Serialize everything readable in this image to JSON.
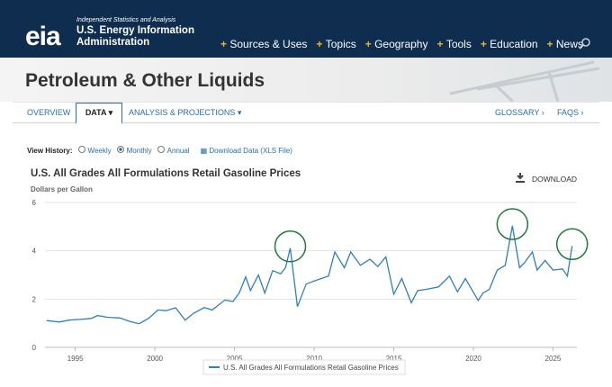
{
  "header": {
    "tagline": "Independent Statistics and Analysis",
    "agency": "U.S. Energy Information Administration",
    "logo": "eia",
    "nav": [
      "Sources & Uses",
      "Topics",
      "Geography",
      "Tools",
      "Education",
      "News"
    ]
  },
  "banner": {
    "title": "Petroleum & Other Liquids"
  },
  "tabs": {
    "left": [
      "OVERVIEW",
      "DATA",
      "ANALYSIS & PROJECTIONS"
    ],
    "right": [
      "GLOSSARY",
      "FAQS"
    ]
  },
  "view_history": {
    "label": "View History:",
    "options": [
      "Weekly",
      "Monthly",
      "Annual"
    ],
    "download": "Download Data (XLS File)"
  },
  "download_button": "DOWNLOAD",
  "chart_data": {
    "type": "line",
    "title": "U.S. All Grades All Formulations Retail Gasoline Prices",
    "y_label": "Dollars per Gallon",
    "x": [
      1993.2,
      1994.0,
      1994.6,
      1995.3,
      1996.0,
      1996.4,
      1997.0,
      1997.8,
      1998.5,
      1999.0,
      1999.6,
      2000.2,
      2000.7,
      2001.3,
      2001.9,
      2002.4,
      2003.1,
      2003.6,
      2004.4,
      2004.9,
      2005.3,
      2005.7,
      2006.0,
      2006.5,
      2006.9,
      2007.4,
      2007.9,
      2008.2,
      2008.5,
      2008.95,
      2009.5,
      2010.0,
      2010.9,
      2011.3,
      2011.9,
      2012.3,
      2012.9,
      2013.5,
      2014.0,
      2014.5,
      2015.0,
      2015.5,
      2016.1,
      2016.5,
      2017.0,
      2017.8,
      2018.5,
      2019.0,
      2019.5,
      2020.3,
      2020.6,
      2021.0,
      2021.5,
      2022.0,
      2022.45,
      2022.9,
      2023.2,
      2023.7,
      2024.0,
      2024.5,
      2025.0,
      2025.6,
      2025.9,
      2026.2
    ],
    "series": [
      {
        "name": "U.S. All Grades All Formulations Retail Gasoline Prices",
        "color": "#2f7ebd",
        "values": [
          1.11,
          1.05,
          1.13,
          1.16,
          1.2,
          1.32,
          1.25,
          1.22,
          1.06,
          0.98,
          1.2,
          1.55,
          1.52,
          1.64,
          1.13,
          1.4,
          1.65,
          1.55,
          1.96,
          1.9,
          2.26,
          2.92,
          2.35,
          3.0,
          2.25,
          3.18,
          3.05,
          3.3,
          4.11,
          1.69,
          2.62,
          2.75,
          2.95,
          3.95,
          3.3,
          3.95,
          3.4,
          3.65,
          3.35,
          3.75,
          2.2,
          2.85,
          1.85,
          2.35,
          2.4,
          2.5,
          2.95,
          2.3,
          2.85,
          1.94,
          2.25,
          2.4,
          3.2,
          3.4,
          5.03,
          3.3,
          3.5,
          3.95,
          3.2,
          3.6,
          3.2,
          3.25,
          2.95,
          4.2
        ]
      }
    ],
    "xlim": [
      1993.1,
      2026.5
    ],
    "xticks": [
      1995,
      2000,
      2005,
      2010,
      2015,
      2020,
      2025
    ],
    "ylim": [
      0,
      6
    ],
    "yticks": [
      0,
      2,
      4,
      6
    ],
    "grid": true,
    "legend": "bottom"
  }
}
